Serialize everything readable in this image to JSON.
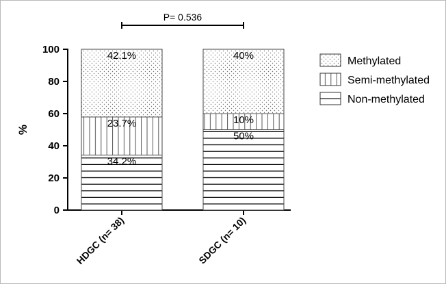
{
  "chart_data": {
    "type": "bar",
    "stacked": true,
    "categories": [
      "HDGC (n= 38)",
      "SDGC (n= 10)"
    ],
    "series": [
      {
        "name": "Non-methylated",
        "values": [
          34.2,
          50
        ],
        "labels": [
          "34.2%",
          "50%"
        ],
        "pattern": "horizontal-lines"
      },
      {
        "name": "Semi-methylated",
        "values": [
          23.7,
          10
        ],
        "labels": [
          "23.7%",
          "10%"
        ],
        "pattern": "vertical-lines"
      },
      {
        "name": "Methylated",
        "values": [
          42.1,
          40
        ],
        "labels": [
          "42.1%",
          "40%"
        ],
        "pattern": "dots"
      }
    ],
    "legend_order": [
      "Methylated",
      "Semi-methylated",
      "Non-methylated"
    ],
    "ylabel": "%",
    "ylim": [
      0,
      100
    ],
    "yticks": [
      0,
      20,
      40,
      60,
      80,
      100
    ],
    "annotation": "P= 0.536",
    "legend_position": "right",
    "grid": false
  }
}
